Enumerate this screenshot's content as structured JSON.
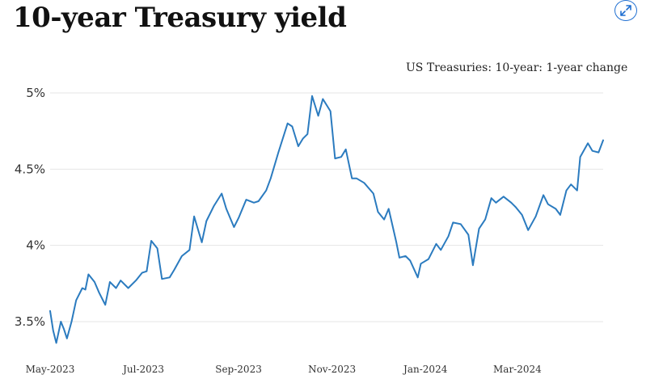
{
  "header": {
    "title": "10-year Treasury yield",
    "expand_icon": "expand-diagonal-arrows-icon"
  },
  "colors": {
    "line": "#2b7bbf",
    "grid": "#e6e6e6",
    "accent": "#1f6fd1"
  },
  "chart_data": {
    "type": "line",
    "title": "10-year Treasury yield",
    "xlabel": "",
    "ylabel": "",
    "legend": {
      "text": "US Treasuries: 10-year: 1-year change",
      "placement": "top-right"
    },
    "grid": true,
    "ylim": [
      3.3,
      5.05
    ],
    "yticks": [
      3.5,
      4.0,
      4.5,
      5.0
    ],
    "ytick_labels": [
      "3.5%",
      "4%",
      "4.5%",
      "5%"
    ],
    "xlim": [
      "2023-05-01",
      "2024-04-26"
    ],
    "xticks": [
      "2023-05-01",
      "2023-07-01",
      "2023-09-01",
      "2023-11-01",
      "2024-01-01",
      "2024-03-01"
    ],
    "xtick_labels": [
      "May-2023",
      "Jul-2023",
      "Sep-2023",
      "Nov-2023",
      "Jan-2024",
      "Mar-2024"
    ],
    "series": [
      {
        "name": "US Treasuries: 10-year",
        "x": [
          "2023-05-01",
          "2023-05-03",
          "2023-05-05",
          "2023-05-08",
          "2023-05-10",
          "2023-05-12",
          "2023-05-15",
          "2023-05-18",
          "2023-05-22",
          "2023-05-24",
          "2023-05-26",
          "2023-05-30",
          "2023-06-02",
          "2023-06-06",
          "2023-06-09",
          "2023-06-13",
          "2023-06-16",
          "2023-06-21",
          "2023-06-26",
          "2023-06-30",
          "2023-07-03",
          "2023-07-06",
          "2023-07-10",
          "2023-07-13",
          "2023-07-18",
          "2023-07-21",
          "2023-07-26",
          "2023-07-31",
          "2023-08-03",
          "2023-08-08",
          "2023-08-11",
          "2023-08-16",
          "2023-08-21",
          "2023-08-24",
          "2023-08-29",
          "2023-09-01",
          "2023-09-06",
          "2023-09-11",
          "2023-09-14",
          "2023-09-19",
          "2023-09-22",
          "2023-09-27",
          "2023-10-03",
          "2023-10-06",
          "2023-10-10",
          "2023-10-13",
          "2023-10-16",
          "2023-10-19",
          "2023-10-23",
          "2023-10-26",
          "2023-10-31",
          "2023-11-03",
          "2023-11-07",
          "2023-11-10",
          "2023-11-14",
          "2023-11-17",
          "2023-11-22",
          "2023-11-28",
          "2023-12-01",
          "2023-12-05",
          "2023-12-08",
          "2023-12-13",
          "2023-12-15",
          "2023-12-19",
          "2023-12-22",
          "2023-12-27",
          "2023-12-29",
          "2024-01-03",
          "2024-01-08",
          "2024-01-11",
          "2024-01-16",
          "2024-01-19",
          "2024-01-24",
          "2024-01-29",
          "2024-02-01",
          "2024-02-05",
          "2024-02-09",
          "2024-02-13",
          "2024-02-16",
          "2024-02-21",
          "2024-02-26",
          "2024-02-29",
          "2024-03-04",
          "2024-03-08",
          "2024-03-13",
          "2024-03-18",
          "2024-03-21",
          "2024-03-26",
          "2024-03-29",
          "2024-04-02",
          "2024-04-05",
          "2024-04-09",
          "2024-04-11",
          "2024-04-16",
          "2024-04-19",
          "2024-04-23",
          "2024-04-26"
        ],
        "values": [
          3.57,
          3.44,
          3.36,
          3.5,
          3.45,
          3.39,
          3.5,
          3.64,
          3.72,
          3.71,
          3.81,
          3.76,
          3.69,
          3.61,
          3.76,
          3.72,
          3.77,
          3.72,
          3.77,
          3.82,
          3.83,
          4.03,
          3.98,
          3.78,
          3.79,
          3.84,
          3.93,
          3.97,
          4.19,
          4.02,
          4.16,
          4.26,
          4.34,
          4.24,
          4.12,
          4.18,
          4.3,
          4.28,
          4.29,
          4.36,
          4.44,
          4.61,
          4.8,
          4.78,
          4.65,
          4.7,
          4.73,
          4.98,
          4.85,
          4.96,
          4.88,
          4.57,
          4.58,
          4.63,
          4.44,
          4.44,
          4.41,
          4.34,
          4.22,
          4.17,
          4.24,
          4.02,
          3.92,
          3.93,
          3.9,
          3.79,
          3.88,
          3.91,
          4.01,
          3.97,
          4.06,
          4.15,
          4.14,
          4.07,
          3.87,
          4.11,
          4.17,
          4.31,
          4.28,
          4.32,
          4.28,
          4.25,
          4.2,
          4.1,
          4.19,
          4.33,
          4.27,
          4.24,
          4.2,
          4.36,
          4.4,
          4.36,
          4.58,
          4.67,
          4.62,
          4.61,
          4.69
        ]
      }
    ]
  }
}
